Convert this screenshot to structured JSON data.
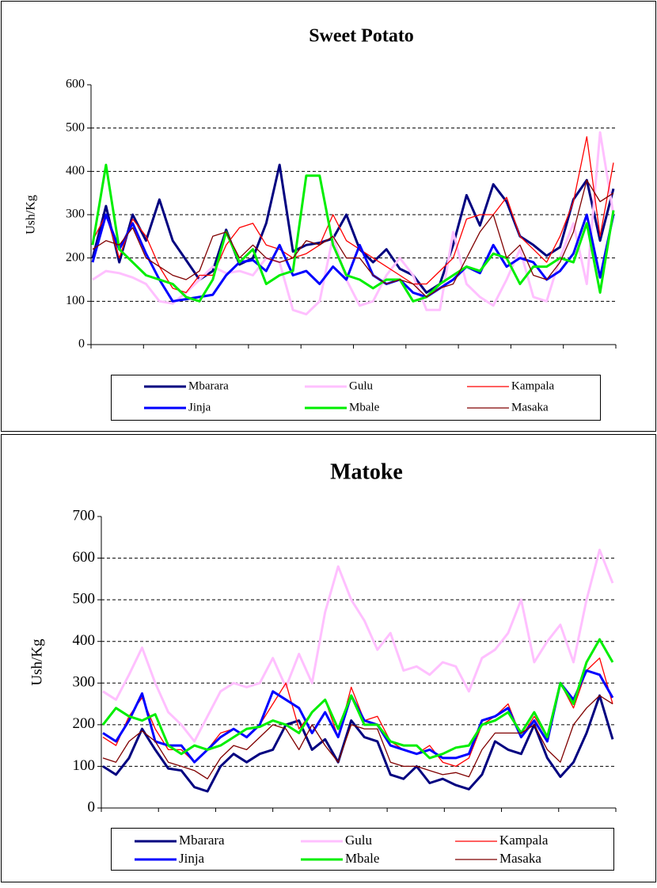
{
  "chart_data": [
    {
      "type": "line",
      "title": "Sweet Potato",
      "y_label": "Ush/Kg",
      "categories": [
        null,
        null,
        null,
        null,
        null,
        null,
        null,
        null,
        null,
        null,
        null,
        null,
        null,
        null,
        null,
        null,
        null,
        null,
        null,
        null,
        null,
        null,
        null,
        null,
        null,
        null,
        null,
        null,
        null,
        null,
        null,
        null,
        null,
        null,
        null,
        null,
        null,
        null,
        null,
        null
      ],
      "ylim": [
        0,
        600
      ],
      "yticks": [
        0,
        100,
        200,
        300,
        400,
        500,
        600
      ],
      "grid": true,
      "legend": "bottom",
      "series": [
        {
          "name": "Mbarara",
          "color": "#000080",
          "line_width": 3,
          "values": [
            200,
            320,
            190,
            300,
            240,
            335,
            240,
            195,
            150,
            170,
            265,
            185,
            200,
            280,
            415,
            215,
            230,
            235,
            245,
            300,
            220,
            190,
            220,
            175,
            160,
            120,
            140,
            230,
            345,
            275,
            370,
            330,
            250,
            230,
            205,
            225,
            335,
            380,
            240,
            360
          ]
        },
        {
          "name": "Gulu",
          "color": "#ffc0ff",
          "line_width": 3,
          "values": [
            150,
            170,
            165,
            155,
            140,
            100,
            95,
            120,
            150,
            180,
            165,
            170,
            160,
            200,
            190,
            80,
            70,
            100,
            250,
            150,
            90,
            100,
            160,
            200,
            160,
            80,
            80,
            260,
            140,
            110,
            90,
            150,
            220,
            110,
            100,
            200,
            280,
            140,
            490,
            300
          ]
        },
        {
          "name": "Kampala",
          "color": "#ff0000",
          "line_width": 1.3,
          "values": [
            240,
            300,
            200,
            290,
            250,
            180,
            130,
            120,
            160,
            160,
            230,
            270,
            280,
            230,
            220,
            200,
            210,
            230,
            300,
            240,
            220,
            200,
            180,
            160,
            140,
            140,
            170,
            200,
            290,
            300,
            300,
            340,
            250,
            220,
            190,
            250,
            330,
            480,
            250,
            420
          ]
        },
        {
          "name": "Jinja",
          "color": "#0000ff",
          "line_width": 3,
          "values": [
            190,
            300,
            220,
            280,
            210,
            150,
            100,
            105,
            110,
            115,
            160,
            190,
            195,
            170,
            230,
            160,
            170,
            140,
            180,
            150,
            230,
            160,
            140,
            150,
            120,
            110,
            130,
            150,
            180,
            165,
            230,
            180,
            200,
            190,
            150,
            170,
            210,
            300,
            155,
            300
          ]
        },
        {
          "name": "Mbale",
          "color": "#00ee00",
          "line_width": 3,
          "values": [
            230,
            415,
            220,
            190,
            160,
            150,
            140,
            110,
            100,
            150,
            260,
            190,
            220,
            140,
            160,
            170,
            390,
            390,
            230,
            160,
            150,
            130,
            150,
            150,
            100,
            110,
            140,
            160,
            180,
            170,
            210,
            200,
            140,
            180,
            180,
            200,
            190,
            280,
            120,
            310
          ]
        },
        {
          "name": "Masaka",
          "color": "#800000",
          "line_width": 1.3,
          "values": [
            220,
            240,
            230,
            270,
            200,
            180,
            160,
            150,
            170,
            250,
            260,
            200,
            230,
            200,
            190,
            200,
            240,
            230,
            250,
            200,
            200,
            160,
            140,
            150,
            140,
            110,
            130,
            140,
            200,
            260,
            300,
            200,
            230,
            160,
            150,
            190,
            260,
            380,
            330,
            350
          ]
        }
      ]
    },
    {
      "type": "line",
      "title": "Matoke",
      "y_label": "Ush/Kg",
      "categories": [
        null,
        null,
        null,
        null,
        null,
        null,
        null,
        null,
        null,
        null,
        null,
        null,
        null,
        null,
        null,
        null,
        null,
        null,
        null,
        null,
        null,
        null,
        null,
        null,
        null,
        null,
        null,
        null,
        null,
        null,
        null,
        null,
        null,
        null,
        null,
        null,
        null,
        null,
        null,
        null
      ],
      "ylim": [
        0,
        700
      ],
      "yticks": [
        0,
        100,
        200,
        300,
        400,
        500,
        600,
        700
      ],
      "grid": true,
      "legend": "bottom",
      "series": [
        {
          "name": "Mbarara",
          "color": "#000080",
          "line_width": 3,
          "values": [
            100,
            80,
            120,
            190,
            140,
            95,
            90,
            50,
            40,
            100,
            130,
            110,
            130,
            140,
            200,
            210,
            140,
            165,
            110,
            210,
            170,
            160,
            80,
            70,
            100,
            60,
            70,
            55,
            45,
            80,
            160,
            140,
            130,
            200,
            120,
            75,
            110,
            180,
            270,
            165
          ]
        },
        {
          "name": "Gulu",
          "color": "#ffc0ff",
          "line_width": 3,
          "values": [
            280,
            260,
            320,
            385,
            300,
            230,
            200,
            160,
            220,
            280,
            300,
            290,
            300,
            360,
            290,
            370,
            300,
            470,
            580,
            500,
            450,
            380,
            420,
            330,
            340,
            320,
            350,
            340,
            280,
            360,
            380,
            420,
            500,
            350,
            400,
            440,
            350,
            500,
            620,
            540
          ]
        },
        {
          "name": "Kampala",
          "color": "#ff0000",
          "line_width": 1.3,
          "values": [
            170,
            150,
            220,
            265,
            190,
            140,
            140,
            110,
            140,
            180,
            190,
            170,
            200,
            250,
            300,
            190,
            230,
            260,
            170,
            290,
            210,
            220,
            160,
            140,
            130,
            150,
            110,
            100,
            120,
            200,
            220,
            250,
            170,
            220,
            170,
            300,
            240,
            330,
            360,
            250
          ]
        },
        {
          "name": "Jinja",
          "color": "#0000ff",
          "line_width": 3,
          "values": [
            180,
            160,
            210,
            275,
            160,
            150,
            150,
            110,
            140,
            170,
            190,
            170,
            200,
            280,
            260,
            240,
            180,
            230,
            170,
            270,
            210,
            200,
            150,
            140,
            130,
            140,
            120,
            120,
            130,
            210,
            220,
            240,
            170,
            210,
            160,
            300,
            260,
            330,
            320,
            265
          ]
        },
        {
          "name": "Mbale",
          "color": "#00ee00",
          "line_width": 3,
          "values": [
            200,
            240,
            220,
            210,
            225,
            150,
            130,
            150,
            140,
            150,
            170,
            190,
            195,
            210,
            200,
            180,
            230,
            260,
            190,
            270,
            200,
            200,
            160,
            150,
            150,
            120,
            130,
            145,
            150,
            200,
            210,
            230,
            180,
            230,
            170,
            300,
            250,
            350,
            405,
            350
          ]
        },
        {
          "name": "Masaka",
          "color": "#800000",
          "line_width": 1.3,
          "values": [
            120,
            110,
            160,
            185,
            160,
            110,
            100,
            90,
            70,
            120,
            150,
            140,
            170,
            200,
            190,
            140,
            200,
            150,
            110,
            200,
            190,
            190,
            110,
            100,
            100,
            90,
            80,
            85,
            75,
            140,
            180,
            180,
            180,
            200,
            140,
            110,
            200,
            240,
            270,
            250
          ]
        }
      ]
    }
  ]
}
